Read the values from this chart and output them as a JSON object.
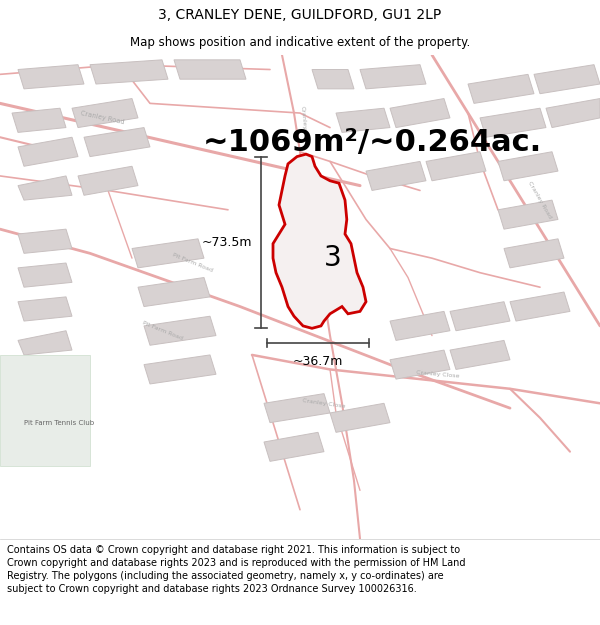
{
  "title": "3, CRANLEY DENE, GUILDFORD, GU1 2LP",
  "subtitle": "Map shows position and indicative extent of the property.",
  "area_text": "~1069m²/~0.264ac.",
  "dim_width": "~36.7m",
  "dim_height": "~73.5m",
  "property_label": "3",
  "map_bg": "#f7f4f4",
  "road_color": "#e8a8a8",
  "building_color": "#d8d2d2",
  "building_edge": "#c8c0c0",
  "property_fill": "#f5f0f0",
  "property_edge": "#cc0000",
  "dim_color": "#444444",
  "label_color": "#aaaaaa",
  "footer_text": "Contains OS data © Crown copyright and database right 2021. This information is subject to Crown copyright and database rights 2023 and is reproduced with the permission of HM Land Registry. The polygons (including the associated geometry, namely x, y co-ordinates) are subject to Crown copyright and database rights 2023 Ordnance Survey 100026316.",
  "title_fontsize": 10,
  "subtitle_fontsize": 8.5,
  "area_fontsize": 22,
  "label_fontsize": 5,
  "footer_fontsize": 7
}
